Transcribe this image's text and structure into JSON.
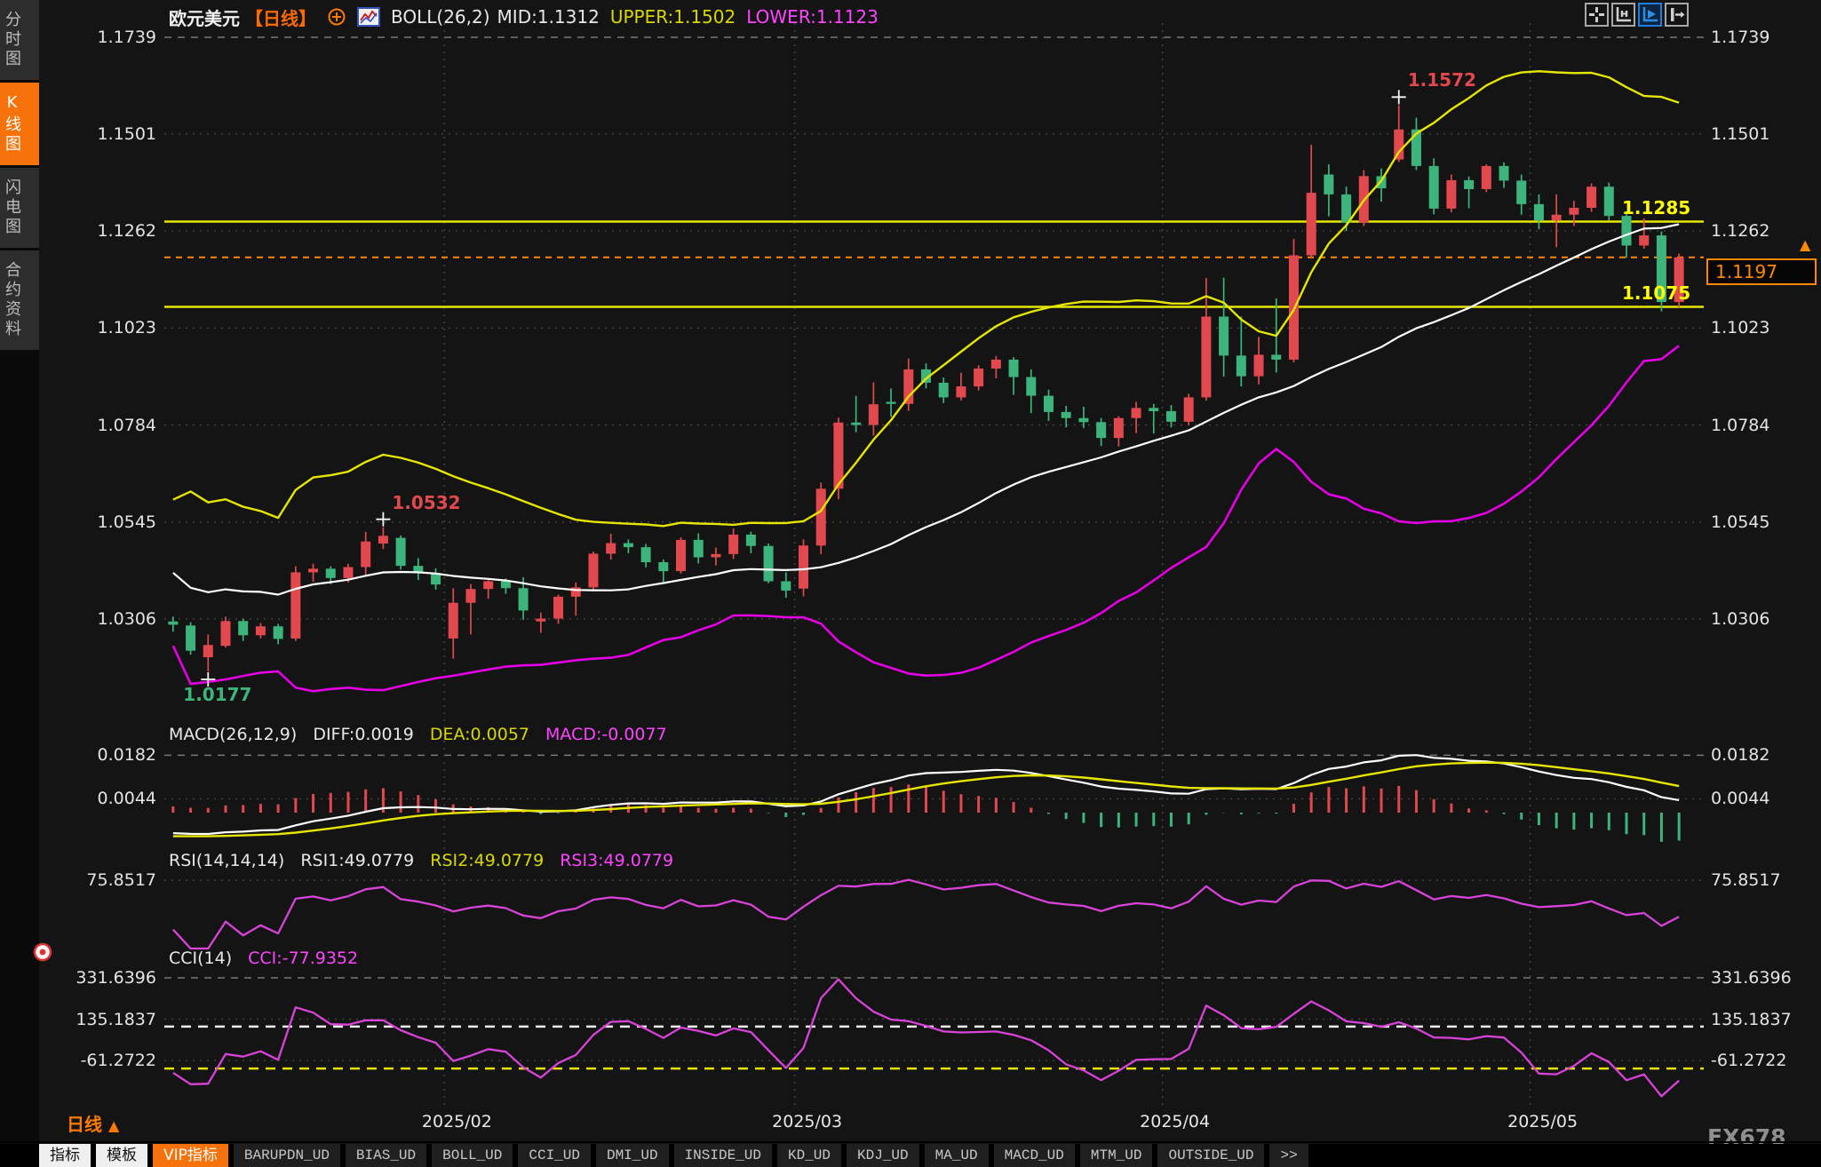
{
  "app": {
    "watermark": "FX678"
  },
  "sidebar": {
    "items": [
      {
        "label": "分时图",
        "active": false
      },
      {
        "label": "K线图",
        "active": true
      },
      {
        "label": "闪电图",
        "active": false
      },
      {
        "label": "合约资料",
        "active": false
      }
    ]
  },
  "header": {
    "symbol": "欧元美元",
    "period_tag": "【日线】",
    "boll_label": "BOLL(26,2)",
    "mid": "MID:1.1312",
    "upper": "UPPER:1.1502",
    "lower": "LOWER:1.1123"
  },
  "top_buttons": [
    {
      "name": "pan-icon",
      "active": false
    },
    {
      "name": "axis-zoom-icon",
      "active": false
    },
    {
      "name": "axis-play-icon",
      "active": true
    },
    {
      "name": "axis-shift-icon",
      "active": false
    }
  ],
  "indicator_rows": {
    "macd": {
      "name": "MACD(26,12,9)",
      "diff": "DIFF:0.0019",
      "dea": "DEA:0.0057",
      "macd": "MACD:-0.0077"
    },
    "rsi": {
      "name": "RSI(14,14,14)",
      "rsi1": "RSI1:49.0779",
      "rsi2": "RSI2:49.0779",
      "rsi3": "RSI3:49.0779"
    },
    "cci": {
      "name": "CCI(14)",
      "cci": "CCI:-77.9352"
    }
  },
  "axes": {
    "main_ticks": [
      "1.1739",
      "1.1501",
      "1.1262",
      "1.1023",
      "1.0784",
      "1.0545",
      "1.0306"
    ],
    "macd_ticks": [
      "0.0182",
      "0.0044"
    ],
    "rsi_ticks": [
      "75.8517"
    ],
    "cci_ticks": [
      "331.6396",
      "135.1837",
      "-61.2722"
    ]
  },
  "price_lines": {
    "resistance": "1.1285",
    "support": "1.1075",
    "current": "1.1197",
    "current_arrow": "▲"
  },
  "bottom_bar": {
    "period_label": "日线",
    "arrow": "▲"
  },
  "tabs_bottom": [
    {
      "label": "指标",
      "style": "light"
    },
    {
      "label": "模板",
      "style": "light"
    },
    {
      "label": "VIP指标",
      "style": "orange"
    },
    {
      "label": "BARUPDN_UD",
      "style": "dark"
    },
    {
      "label": "BIAS_UD",
      "style": "dark"
    },
    {
      "label": "BOLL_UD",
      "style": "dark"
    },
    {
      "label": "CCI_UD",
      "style": "dark"
    },
    {
      "label": "DMI_UD",
      "style": "dark"
    },
    {
      "label": "INSIDE_UD",
      "style": "dark"
    },
    {
      "label": "KD_UD",
      "style": "dark"
    },
    {
      "label": "KDJ_UD",
      "style": "dark"
    },
    {
      "label": "MA_UD",
      "style": "dark"
    },
    {
      "label": "MACD_UD",
      "style": "dark"
    },
    {
      "label": "MTM_UD",
      "style": "dark"
    },
    {
      "label": "OUTSIDE_UD",
      "style": "dark"
    },
    {
      "label": ">>",
      "style": "dark"
    }
  ],
  "colors": {
    "up": "#e2494f",
    "down": "#3db47c",
    "boll_mid": "#ffffff",
    "boll_upper": "#e6e600",
    "boll_lower": "#e600e6",
    "macd_diff": "#ffffff",
    "macd_dea": "#e6e600",
    "rsi_line": "#d943d9",
    "cci_line": "#d943d9",
    "accent_orange": "#ff8800",
    "yellow_line": "#e6e600",
    "grid_dot": "#454545",
    "grid_dash": "#787878"
  },
  "chart_data": {
    "type": "candlestick",
    "symbol": "欧元美元 (EUR/USD)",
    "period": "日线",
    "x_labels": [
      "2025/02",
      "2025/03",
      "2025/04",
      "2025/05"
    ],
    "month_start_indices": [
      16,
      36,
      57,
      78
    ],
    "y_axis_main": [
      1.1739,
      1.1501,
      1.1262,
      1.1023,
      1.0784,
      1.0545,
      1.0306
    ],
    "y_axis_macd": [
      0.0182,
      0.0044
    ],
    "y_axis_rsi": [
      75.8517
    ],
    "y_axis_cci": [
      331.6396,
      135.1837,
      -61.2722
    ],
    "hlines": {
      "resistance": 1.1285,
      "support": 1.1075,
      "current_price": 1.1197
    },
    "cci_bands": {
      "upper": 100,
      "lower": -100
    },
    "indicators": {
      "boll": [
        26,
        2
      ],
      "macd": [
        26,
        12,
        9
      ],
      "rsi": [
        14,
        14,
        14
      ],
      "cci": [
        14
      ]
    },
    "indicator_last": {
      "boll_mid": 1.1312,
      "boll_upper": 1.1502,
      "boll_lower": 1.1123,
      "diff": 0.0019,
      "dea": 0.0057,
      "macd": -0.0077,
      "rsi": 49.0779,
      "cci": -77.9352
    },
    "left_edge_seeds": {
      "boll_mid": 1.042,
      "boll_upper": 1.06,
      "boll_lower": 1.024,
      "diff": -0.0065,
      "dea": -0.0075,
      "rsi": 40,
      "cci": -120
    },
    "annotations": [
      {
        "index": 2,
        "price": 1.0177,
        "side": "low",
        "label": "1.0177",
        "color": "#3db47c"
      },
      {
        "index": 12,
        "price": 1.0532,
        "side": "high",
        "label": "1.0532",
        "color": "#e2494f"
      },
      {
        "index": 70,
        "price": 1.1572,
        "side": "high",
        "label": "1.1572",
        "color": "#e2494f"
      }
    ],
    "candles": [
      [
        1.03,
        1.0312,
        1.0275,
        1.0292
      ],
      [
        1.029,
        1.0298,
        1.0218,
        1.0228
      ],
      [
        1.0212,
        1.0268,
        1.0177,
        1.0242
      ],
      [
        1.024,
        1.0312,
        1.0236,
        1.0301
      ],
      [
        1.0301,
        1.0307,
        1.0252,
        1.0266
      ],
      [
        1.0266,
        1.0296,
        1.0258,
        1.0288
      ],
      [
        1.0288,
        1.0294,
        1.0244,
        1.0257
      ],
      [
        1.0258,
        1.0436,
        1.0252,
        1.0421
      ],
      [
        1.0421,
        1.0442,
        1.0398,
        1.043
      ],
      [
        1.043,
        1.0436,
        1.0392,
        1.0407
      ],
      [
        1.0407,
        1.0442,
        1.0396,
        1.0434
      ],
      [
        1.0434,
        1.0521,
        1.0412,
        1.0497
      ],
      [
        1.0492,
        1.0532,
        1.0478,
        1.0511
      ],
      [
        1.0506,
        1.0512,
        1.0428,
        1.0437
      ],
      [
        1.0437,
        1.0456,
        1.0402,
        1.0419
      ],
      [
        1.0419,
        1.0431,
        1.0378,
        1.0391
      ],
      [
        1.0258,
        1.0382,
        1.0208,
        1.0346
      ],
      [
        1.0346,
        1.0392,
        1.0268,
        1.038
      ],
      [
        1.038,
        1.0402,
        1.0356,
        1.0399
      ],
      [
        1.0399,
        1.0406,
        1.0368,
        1.0382
      ],
      [
        1.0382,
        1.0409,
        1.0304,
        1.0327
      ],
      [
        1.03,
        1.0322,
        1.0272,
        1.0307
      ],
      [
        1.0307,
        1.0366,
        1.0294,
        1.0361
      ],
      [
        1.0361,
        1.0396,
        1.0314,
        1.0384
      ],
      [
        1.0384,
        1.0472,
        1.0374,
        1.0467
      ],
      [
        1.0467,
        1.0516,
        1.0452,
        1.0493
      ],
      [
        1.0493,
        1.0502,
        1.0468,
        1.0483
      ],
      [
        1.0483,
        1.0491,
        1.0433,
        1.0446
      ],
      [
        1.0446,
        1.0453,
        1.0398,
        1.0424
      ],
      [
        1.0424,
        1.0507,
        1.0418,
        1.0501
      ],
      [
        1.0501,
        1.0517,
        1.0443,
        1.0458
      ],
      [
        1.0458,
        1.0482,
        1.0438,
        1.0466
      ],
      [
        1.0466,
        1.0529,
        1.0454,
        1.0514
      ],
      [
        1.0514,
        1.0521,
        1.0468,
        1.0486
      ],
      [
        1.0486,
        1.0492,
        1.0394,
        1.0399
      ],
      [
        1.0399,
        1.0421,
        1.0358,
        1.0376
      ],
      [
        1.0381,
        1.0502,
        1.0362,
        1.0487
      ],
      [
        1.0487,
        1.0642,
        1.0466,
        1.0627
      ],
      [
        1.0627,
        1.0802,
        1.0601,
        1.079
      ],
      [
        1.079,
        1.0856,
        1.0766,
        1.0784
      ],
      [
        1.0784,
        1.0889,
        1.0758,
        1.0835
      ],
      [
        1.0841,
        1.0874,
        1.0804,
        1.0836
      ],
      [
        1.0836,
        1.0948,
        1.0819,
        1.0921
      ],
      [
        1.0921,
        1.0936,
        1.0874,
        1.0888
      ],
      [
        1.0888,
        1.0901,
        1.0838,
        1.0852
      ],
      [
        1.0852,
        1.0913,
        1.0844,
        1.0879
      ],
      [
        1.0879,
        1.0931,
        1.0869,
        1.0923
      ],
      [
        1.0923,
        1.0954,
        1.0899,
        1.0945
      ],
      [
        1.0945,
        1.0951,
        1.0858,
        1.0902
      ],
      [
        1.0902,
        1.0921,
        1.0813,
        1.0856
      ],
      [
        1.0856,
        1.0871,
        1.0794,
        1.0816
      ],
      [
        1.0816,
        1.0831,
        1.0778,
        1.0801
      ],
      [
        1.0801,
        1.0829,
        1.0776,
        1.0791
      ],
      [
        1.0791,
        1.0801,
        1.0732,
        1.0752
      ],
      [
        1.0752,
        1.0806,
        1.0731,
        1.0801
      ],
      [
        1.0801,
        1.0841,
        1.0764,
        1.0826
      ],
      [
        1.0826,
        1.0836,
        1.0763,
        1.0818
      ],
      [
        1.0818,
        1.0833,
        1.0778,
        1.0792
      ],
      [
        1.0792,
        1.0861,
        1.0784,
        1.0852
      ],
      [
        1.0852,
        1.1146,
        1.0844,
        1.1051
      ],
      [
        1.1051,
        1.1147,
        1.0903,
        1.0955
      ],
      [
        1.0955,
        1.1051,
        1.0879,
        1.0904
      ],
      [
        1.0904,
        1.1001,
        1.0884,
        1.0957
      ],
      [
        1.0957,
        1.1096,
        1.0913,
        1.0945
      ],
      [
        1.0945,
        1.1242,
        1.0938,
        1.1202
      ],
      [
        1.1202,
        1.1474,
        1.1194,
        1.1356
      ],
      [
        1.1401,
        1.1426,
        1.1298,
        1.1352
      ],
      [
        1.1352,
        1.1371,
        1.1262,
        1.1283
      ],
      [
        1.1283,
        1.1412,
        1.1274,
        1.1397
      ],
      [
        1.1397,
        1.1416,
        1.1334,
        1.1367
      ],
      [
        1.1438,
        1.1572,
        1.1432,
        1.1512
      ],
      [
        1.1512,
        1.1541,
        1.1412,
        1.1422
      ],
      [
        1.1422,
        1.1441,
        1.1303,
        1.1317
      ],
      [
        1.1317,
        1.1401,
        1.1308,
        1.1387
      ],
      [
        1.1387,
        1.1396,
        1.1318,
        1.1365
      ],
      [
        1.1365,
        1.1426,
        1.1358,
        1.1422
      ],
      [
        1.1422,
        1.1431,
        1.1368,
        1.1386
      ],
      [
        1.1386,
        1.1401,
        1.1302,
        1.1328
      ],
      [
        1.1328,
        1.1352,
        1.1266,
        1.1288
      ],
      [
        1.1288,
        1.1352,
        1.1222,
        1.1302
      ],
      [
        1.1302,
        1.1336,
        1.1274,
        1.1319
      ],
      [
        1.1319,
        1.1379,
        1.1309,
        1.1371
      ],
      [
        1.1371,
        1.1381,
        1.1288,
        1.1299
      ],
      [
        1.1299,
        1.1311,
        1.1196,
        1.1226
      ],
      [
        1.1226,
        1.1293,
        1.1218,
        1.1251
      ],
      [
        1.1251,
        1.1261,
        1.1064,
        1.1087
      ],
      [
        1.1087,
        1.1206,
        1.1074,
        1.1197
      ]
    ]
  }
}
